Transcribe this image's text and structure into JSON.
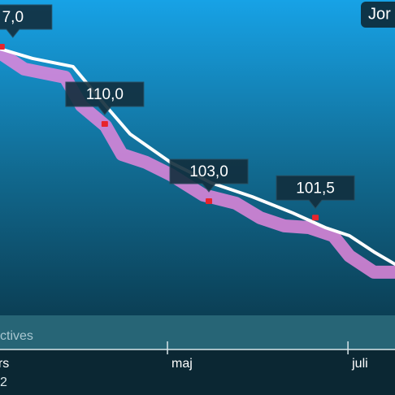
{
  "top_button": "Jor",
  "goal_label": "ctives",
  "year_label": "2",
  "chart_data": {
    "type": "line",
    "xlim": [
      4.4,
      137.9
    ],
    "ylim": [
      92.68,
      121.27
    ],
    "xticks": [
      {
        "value": 0,
        "label": "ars"
      },
      {
        "value": 61,
        "label": "maj"
      },
      {
        "value": 122,
        "label": "juli"
      }
    ],
    "series": [
      {
        "color": "#e386dc",
        "x": [
          4.4,
          12.6,
          26.4,
          31.9,
          40.1,
          45.6,
          53.8,
          62.1,
          73.1,
          84.1,
          92.3,
          100.5,
          108.8,
          117.0,
          122.5,
          130.8,
          137.9
        ],
        "values": [
          116.48,
          115.01,
          114.27,
          111.69,
          109.85,
          107.27,
          106.54,
          105.43,
          103.59,
          102.85,
          101.53,
          100.79,
          100.64,
          99.9,
          98.06,
          96.59,
          96.59
        ]
      },
      {
        "color": "#ffffff",
        "x": [
          4.4,
          15.4,
          29.1,
          40.1,
          48.4,
          62.1,
          75.8,
          89.6,
          103.3,
          114.3,
          122.5,
          130.8,
          137.9
        ],
        "values": [
          116.85,
          115.97,
          115.23,
          111.69,
          109.11,
          106.54,
          104.69,
          103.44,
          101.97,
          100.64,
          99.9,
          98.43,
          97.32
        ]
      }
    ],
    "markers": {
      "color": "#e8242c",
      "x": [
        4.9,
        39.8,
        75.0,
        111.0
      ],
      "values": [
        117.0,
        110.0,
        103.0,
        101.5
      ]
    },
    "annotations": [
      "7,0",
      "110,0",
      "103,0",
      "101,5"
    ]
  }
}
